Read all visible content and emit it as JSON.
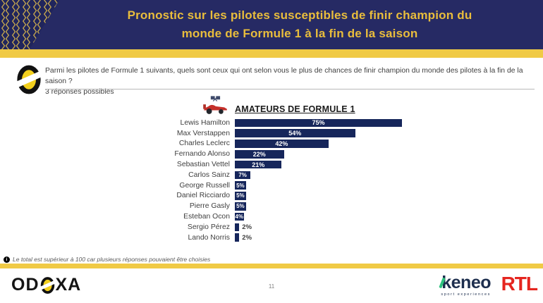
{
  "header": {
    "title": "Pronostic sur les pilotes susceptibles de finir champion du\nmonde de Formule 1 à la fin de la saison"
  },
  "question": {
    "text": "Parmi les pilotes de Formule 1 suivants, quels sont ceux qui ont selon vous le plus de chances de finir champion du monde des pilotes à la fin de la saison ?",
    "subtext": "3 réponses possibles"
  },
  "chart_data": {
    "type": "bar",
    "orientation": "horizontal",
    "title": "AMATEURS DE FORMULE 1",
    "categories": [
      "Lewis Hamilton",
      "Max Verstappen",
      "Charles Leclerc",
      "Fernando Alonso",
      "Sebastian Vettel",
      "Carlos Sainz",
      "George Russell",
      "Daniel Ricciardo",
      "Pierre Gasly",
      "Esteban Ocon",
      "Sergio Pérez",
      "Lando Norris"
    ],
    "values": [
      75,
      54,
      42,
      22,
      21,
      7,
      5,
      5,
      5,
      4,
      2,
      2
    ],
    "unit": "%",
    "xlim": [
      0,
      100
    ],
    "grid": false,
    "legend": false,
    "bar_color": "#16265b",
    "value_label_inside_color": "#ffffff",
    "value_label_outside_color": "#3f3f3f"
  },
  "footnote": {
    "text": "Le total est supérieur à 100 car plusieurs réponses pouvaient être choisies"
  },
  "footer": {
    "odoxa_left": "OD",
    "odoxa_right": "XA",
    "page_number": "11",
    "keneo": "keneo",
    "keneo_tagline": "sport experiences",
    "rtl": "RTL"
  },
  "icons": {
    "odoxa_o": "yellow-and-black slashed O badge",
    "f1_car": "red formula-1 car with crossed checkered flags",
    "info": "black circle with white i"
  },
  "colors": {
    "header_navy": "#262a64",
    "accent_yellow": "#f0ca45",
    "title_gold": "#e9bd3c",
    "bar_navy": "#16265b",
    "text_dark": "#3f3f3f",
    "rtl_red": "#e5251f",
    "keneo_navy": "#1d2e4e",
    "keneo_green": "#2ec27e"
  }
}
